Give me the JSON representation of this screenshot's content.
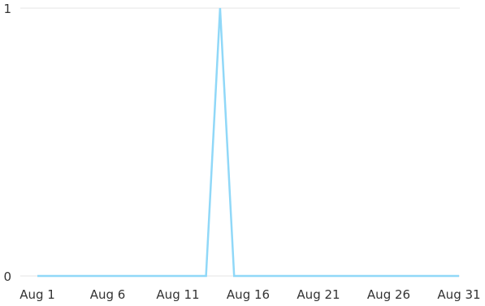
{
  "chart_data": {
    "type": "line",
    "title": "",
    "xlabel": "",
    "ylabel": "",
    "x_tick_labels": [
      "Aug 1",
      "Aug 6",
      "Aug 11",
      "Aug 16",
      "Aug 21",
      "Aug 26",
      "Aug 31"
    ],
    "x_ticks": [
      1,
      6,
      11,
      16,
      21,
      26,
      31
    ],
    "xlim": [
      1,
      31
    ],
    "y_tick_labels": [
      "0",
      "1"
    ],
    "y_ticks": [
      0,
      1
    ],
    "ylim": [
      0,
      1
    ],
    "grid": "horizontal",
    "series": [
      {
        "color": "#90d8f8",
        "x": [
          1,
          2,
          3,
          4,
          5,
          6,
          7,
          8,
          9,
          10,
          11,
          12,
          13,
          14,
          15,
          16,
          17,
          18,
          19,
          20,
          21,
          22,
          23,
          24,
          25,
          26,
          27,
          28,
          29,
          30,
          31
        ],
        "y": [
          0,
          0,
          0,
          0,
          0,
          0,
          0,
          0,
          0,
          0,
          0,
          0,
          0,
          1,
          0,
          0,
          0,
          0,
          0,
          0,
          0,
          0,
          0,
          0,
          0,
          0,
          0,
          0,
          0,
          0,
          0
        ]
      }
    ]
  }
}
